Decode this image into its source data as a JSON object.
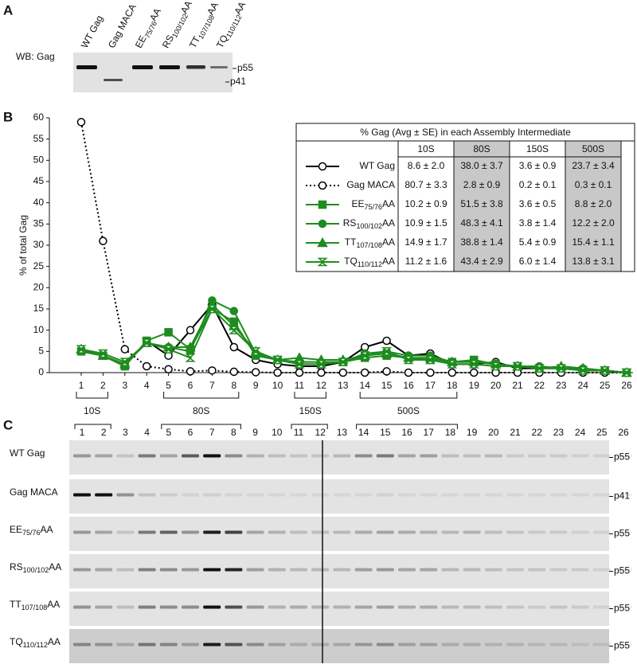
{
  "panels": {
    "a": "A",
    "b": "B",
    "c": "C"
  },
  "blot": {
    "label": "WB: Gag",
    "bands": [
      "p55",
      "p41"
    ]
  },
  "chart_data": {
    "type": "line",
    "ylabel": "% of total Gag",
    "categories": [
      "1",
      "2",
      "3",
      "4",
      "5",
      "6",
      "7",
      "8",
      "9",
      "10",
      "11",
      "12",
      "13",
      "14",
      "15",
      "16",
      "17",
      "18",
      "19",
      "20",
      "21",
      "22",
      "23",
      "24",
      "25",
      "26"
    ],
    "ylim": [
      0,
      60
    ],
    "yticks": [
      0,
      5,
      10,
      15,
      20,
      25,
      30,
      35,
      40,
      45,
      50,
      55,
      60
    ],
    "series": [
      {
        "name": {
          "text": "WT Gag"
        },
        "color": "#000000",
        "marker": "circle-open",
        "dash": "solid",
        "values": [
          5,
          4,
          1.5,
          7.5,
          4,
          10,
          16,
          6,
          3,
          2,
          1.5,
          1.5,
          2.5,
          6,
          7.5,
          4,
          4.5,
          2,
          2,
          2.5,
          1,
          1,
          1,
          0.5,
          0.5,
          0
        ]
      },
      {
        "name": {
          "text": "Gag MACA"
        },
        "color": "#000000",
        "marker": "circle-open",
        "dash": "dotted",
        "values": [
          59,
          31,
          5.5,
          1.5,
          0.8,
          0.3,
          0.5,
          0.2,
          0.1,
          0,
          0,
          0,
          0,
          0,
          0.3,
          0,
          0,
          0,
          0,
          0,
          0,
          0,
          0,
          0,
          0,
          0
        ]
      },
      {
        "name": {
          "text": "EE",
          "sub": "75/76",
          "after": "AA"
        },
        "color": "#1e8c1e",
        "marker": "square",
        "dash": "solid",
        "values": [
          5,
          4,
          1.5,
          7.5,
          9.5,
          5.5,
          15,
          12,
          4,
          3,
          2,
          2,
          2.5,
          3.5,
          4,
          3.5,
          3,
          2.5,
          3,
          2,
          1.5,
          1,
          1,
          0.5,
          0.5,
          0
        ]
      },
      {
        "name": {
          "text": "RS",
          "sub": "100/102",
          "after": "AA"
        },
        "color": "#1e8c1e",
        "marker": "circle",
        "dash": "solid",
        "values": [
          5,
          4,
          2,
          7,
          6,
          5,
          17,
          14.5,
          4.5,
          3,
          2.5,
          2.5,
          2.5,
          4.5,
          5,
          4,
          4,
          2.5,
          2.5,
          2,
          1.5,
          1.5,
          1,
          1,
          0.5,
          0
        ]
      },
      {
        "name": {
          "text": "TT",
          "sub": "107/108",
          "after": "AA"
        },
        "color": "#1e8c1e",
        "marker": "triangle",
        "dash": "solid",
        "values": [
          5.5,
          4,
          2,
          7,
          6,
          6,
          16,
          11,
          5,
          3,
          3.5,
          3,
          3,
          4,
          4.5,
          3.5,
          3.5,
          2.5,
          2.5,
          2,
          1.5,
          1,
          1.5,
          1,
          0.5,
          0
        ]
      },
      {
        "name": {
          "text": "TQ",
          "sub": "110/112",
          "after": "AA"
        },
        "color": "#1e8c1e",
        "marker": "hourglass",
        "dash": "solid",
        "values": [
          5.5,
          4.5,
          2.5,
          7,
          5.5,
          3.5,
          15,
          10,
          5,
          3,
          2,
          2,
          2.5,
          4,
          5,
          3,
          3,
          2,
          2,
          1.5,
          1.5,
          1,
          1,
          0.5,
          0.5,
          0
        ]
      }
    ],
    "groups": [
      {
        "label": "10S",
        "span": [
          "1",
          "2"
        ]
      },
      {
        "label": "80S",
        "span": [
          "5",
          "8"
        ]
      },
      {
        "label": "150S",
        "span": [
          "11",
          "12"
        ]
      },
      {
        "label": "500S",
        "span": [
          "14",
          "18"
        ]
      }
    ]
  },
  "table": {
    "title": "% Gag (Avg ± SE) in each Assembly Intermediate",
    "columns": [
      "10S",
      "80S",
      "150S",
      "500S"
    ],
    "shaded": [
      false,
      true,
      false,
      true
    ],
    "rows": [
      [
        "8.6 ± 2.0",
        "38.0 ± 3.7",
        "3.6 ± 0.9",
        "23.7 ± 3.4"
      ],
      [
        "80.7 ± 3.3",
        "2.8 ± 0.9",
        "0.2 ± 0.1",
        "0.3 ± 0.1"
      ],
      [
        "10.2 ± 0.9",
        "51.5 ± 3.8",
        "3.6 ± 0.5",
        "8.8 ± 2.0"
      ],
      [
        "10.9 ± 1.5",
        "48.3 ± 4.1",
        "3.8 ± 1.4",
        "12.2 ± 2.0"
      ],
      [
        "14.9 ± 1.7",
        "38.8 ± 1.4",
        "5.4 ± 0.9",
        "15.4 ± 1.1"
      ],
      [
        "11.2 ± 1.6",
        "43.4 ± 2.9",
        "6.0 ± 1.4",
        "13.8 ± 3.1"
      ]
    ]
  },
  "gel": {
    "rows": [
      {
        "band": "p55"
      },
      {
        "band": "p41"
      },
      {
        "band": "p55"
      },
      {
        "band": "p55"
      },
      {
        "band": "p55"
      },
      {
        "band": "p55"
      }
    ]
  }
}
